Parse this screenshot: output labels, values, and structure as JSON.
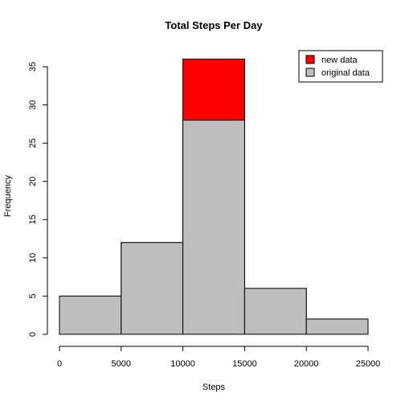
{
  "chart_data": {
    "type": "bar",
    "title": "Total Steps Per Day",
    "xlabel": "Steps",
    "ylabel": "Frequency",
    "bins": [
      {
        "from": 0,
        "to": 5000
      },
      {
        "from": 5000,
        "to": 10000
      },
      {
        "from": 10000,
        "to": 15000
      },
      {
        "from": 15000,
        "to": 20000
      },
      {
        "from": 20000,
        "to": 25000
      }
    ],
    "series": [
      {
        "name": "new data",
        "values": [
          5,
          12,
          36,
          6,
          2
        ],
        "color": "#ff0000"
      },
      {
        "name": "original data",
        "values": [
          5,
          12,
          28,
          6,
          2
        ],
        "color": "#bebebe"
      }
    ],
    "xticks": [
      "0",
      "5000",
      "10000",
      "15000",
      "20000",
      "25000"
    ],
    "yticks": [
      "0",
      "5",
      "10",
      "15",
      "20",
      "25",
      "30",
      "35"
    ],
    "xlim": [
      0,
      25000
    ],
    "ylim": [
      0,
      35
    ],
    "grid": false,
    "legend_position": "top-right"
  }
}
